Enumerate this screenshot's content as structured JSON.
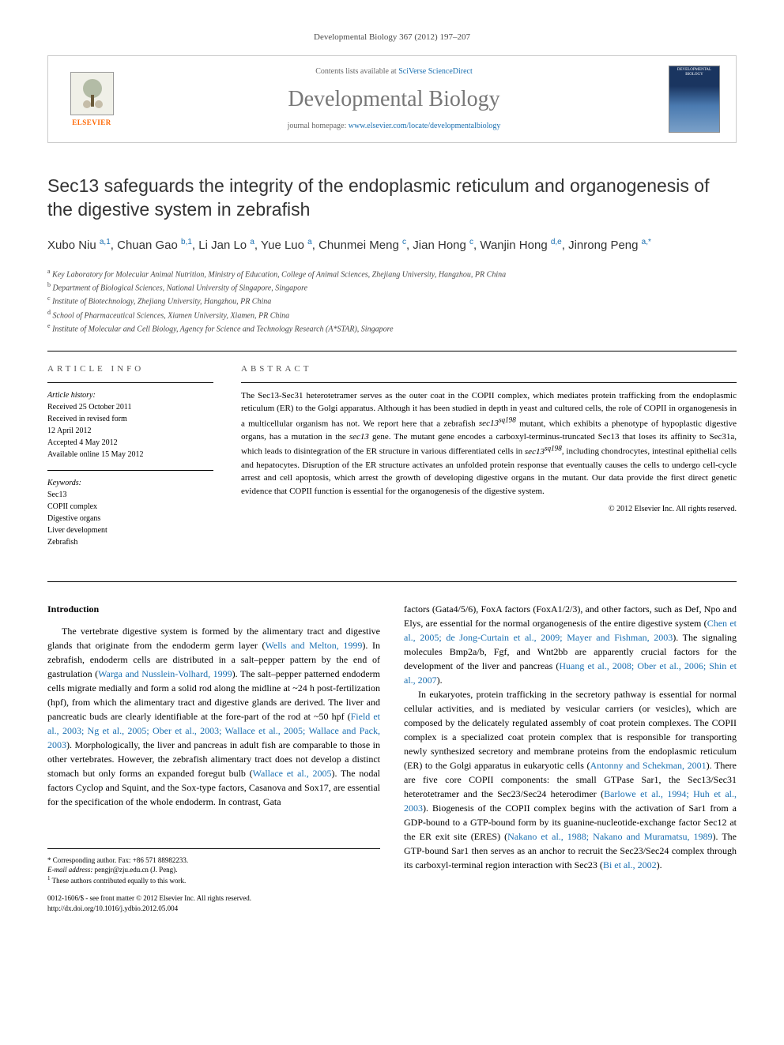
{
  "header": {
    "citation_line": "Developmental Biology 367 (2012) 197–207",
    "contents_prefix": "Contents lists available at ",
    "contents_link": "SciVerse ScienceDirect",
    "journal_name": "Developmental Biology",
    "homepage_prefix": "journal homepage: ",
    "homepage_url": "www.elsevier.com/locate/developmentalbiology",
    "publisher": "ELSEVIER",
    "cover_label": "DEVELOPMENTAL BIOLOGY"
  },
  "article": {
    "title": "Sec13 safeguards the integrity of the endoplasmic reticulum and organogenesis of the digestive system in zebrafish",
    "authors_html": "Xubo Niu <sup>a,1</sup>, Chuan Gao <sup>b,1</sup>, Li Jan Lo <sup>a</sup>, Yue Luo <sup>a</sup>, Chunmei Meng <sup>c</sup>, Jian Hong <sup>c</sup>, Wanjin Hong <sup>d,e</sup>, Jinrong Peng <sup>a,*</sup>",
    "affiliations": {
      "a": "Key Laboratory for Molecular Animal Nutrition, Ministry of Education, College of Animal Sciences, Zhejiang University, Hangzhou, PR China",
      "b": "Department of Biological Sciences, National University of Singapore, Singapore",
      "c": "Institute of Biotechnology, Zhejiang University, Hangzhou, PR China",
      "d": "School of Pharmaceutical Sciences, Xiamen University, Xiamen, PR China",
      "e": "Institute of Molecular and Cell Biology, Agency for Science and Technology Research (A*STAR), Singapore"
    }
  },
  "info": {
    "heading": "ARTICLE INFO",
    "history_label": "Article history:",
    "received": "Received 25 October 2011",
    "revised": "Received in revised form",
    "revised_date": "12 April 2012",
    "accepted": "Accepted 4 May 2012",
    "online": "Available online 15 May 2012",
    "keywords_label": "Keywords:",
    "keywords": [
      "Sec13",
      "COPII complex",
      "Digestive organs",
      "Liver development",
      "Zebrafish"
    ]
  },
  "abstract": {
    "heading": "ABSTRACT",
    "text": "The Sec13-Sec31 heterotetramer serves as the outer coat in the COPII complex, which mediates protein trafficking from the endoplasmic reticulum (ER) to the Golgi apparatus. Although it has been studied in depth in yeast and cultured cells, the role of COPII in organogenesis in a multicellular organism has not. We report here that a zebrafish sec13sq198 mutant, which exhibits a phenotype of hypoplastic digestive organs, has a mutation in the sec13 gene. The mutant gene encodes a carboxyl-terminus-truncated Sec13 that loses its affinity to Sec31a, which leads to disintegration of the ER structure in various differentiated cells in sec13sq198, including chondrocytes, intestinal epithelial cells and hepatocytes. Disruption of the ER structure activates an unfolded protein response that eventually causes the cells to undergo cell-cycle arrest and cell apoptosis, which arrest the growth of developing digestive organs in the mutant. Our data provide the first direct genetic evidence that COPII function is essential for the organogenesis of the digestive system.",
    "copyright": "© 2012 Elsevier Inc. All rights reserved."
  },
  "body": {
    "intro_heading": "Introduction",
    "col1_p1": "The vertebrate digestive system is formed by the alimentary tract and digestive glands that originate from the endoderm germ layer (Wells and Melton, 1999). In zebrafish, endoderm cells are distributed in a salt–pepper pattern by the end of gastrulation (Warga and Nusslein-Volhard, 1999). The salt–pepper patterned endoderm cells migrate medially and form a solid rod along the midline at ~24 h post-fertilization (hpf), from which the alimentary tract and digestive glands are derived. The liver and pancreatic buds are clearly identifiable at the fore-part of the rod at ~50 hpf (Field et al., 2003; Ng et al., 2005; Ober et al., 2003; Wallace et al., 2005; Wallace and Pack, 2003). Morphologically, the liver and pancreas in adult fish are comparable to those in other vertebrates. However, the zebrafish alimentary tract does not develop a distinct stomach but only forms an expanded foregut bulb (Wallace et al., 2005). The nodal factors Cyclop and Squint, and the Sox-type factors, Casanova and Sox17, are essential for the specification of the whole endoderm. In contrast, Gata",
    "col2_p1": "factors (Gata4/5/6), FoxA factors (FoxA1/2/3), and other factors, such as Def, Npo and Elys, are essential for the normal organogenesis of the entire digestive system (Chen et al., 2005; de Jong-Curtain et al., 2009; Mayer and Fishman, 2003). The signaling molecules Bmp2a/b, Fgf, and Wnt2bb are apparently crucial factors for the development of the liver and pancreas (Huang et al., 2008; Ober et al., 2006; Shin et al., 2007).",
    "col2_p2": "In eukaryotes, protein trafficking in the secretory pathway is essential for normal cellular activities, and is mediated by vesicular carriers (or vesicles), which are composed by the delicately regulated assembly of coat protein complexes. The COPII complex is a specialized coat protein complex that is responsible for transporting newly synthesized secretory and membrane proteins from the endoplasmic reticulum (ER) to the Golgi apparatus in eukaryotic cells (Antonny and Schekman, 2001). There are five core COPII components: the small GTPase Sar1, the Sec13/Sec31 heterotetramer and the Sec23/Sec24 heterodimer (Barlowe et al., 1994; Huh et al., 2003). Biogenesis of the COPII complex begins with the activation of Sar1 from a GDP-bound to a GTP-bound form by its guanine-nucleotide-exchange factor Sec12 at the ER exit site (ERES) (Nakano et al., 1988; Nakano and Muramatsu, 1989). The GTP-bound Sar1 then serves as an anchor to recruit the Sec23/Sec24 complex through its carboxyl-terminal region interaction with Sec23 (Bi et al., 2002)."
  },
  "footer": {
    "corresponding": "* Corresponding author. Fax: +86 571 88982233.",
    "email_label": "E-mail address:",
    "email": "pengjr@zju.edu.cn (J. Peng).",
    "note1": "1 These authors contributed equally to this work.",
    "issn": "0012-1606/$ - see front matter © 2012 Elsevier Inc. All rights reserved.",
    "doi": "http://dx.doi.org/10.1016/j.ydbio.2012.05.004"
  },
  "colors": {
    "link": "#1a6fb0",
    "elsevier_orange": "#ff6600",
    "text": "#000000",
    "gray_heading": "#777777"
  }
}
